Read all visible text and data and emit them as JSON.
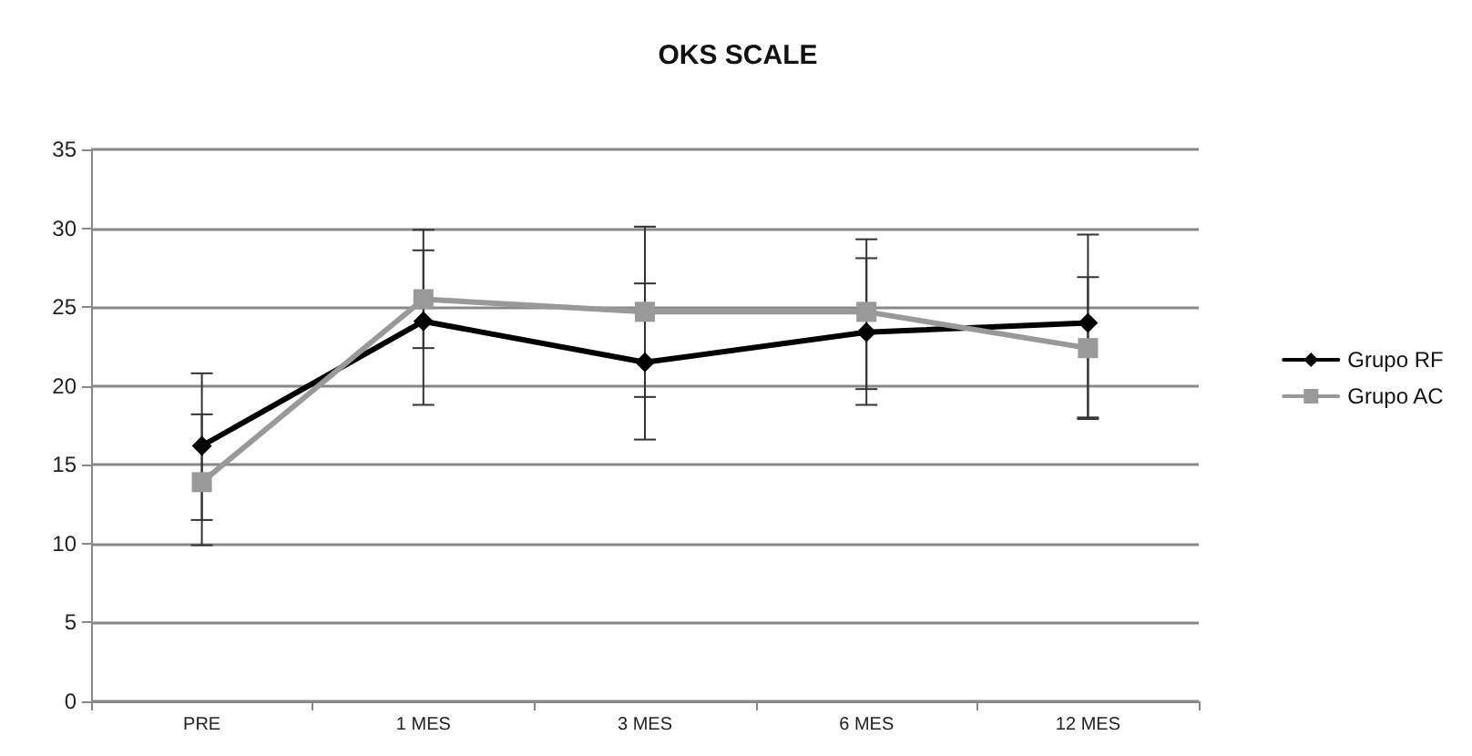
{
  "chart_data": {
    "type": "line",
    "title": "OKS SCALE",
    "categories": [
      "PRE",
      "1 MES",
      "3 MES",
      "6 MES",
      "12 MES"
    ],
    "series": [
      {
        "name": "Grupo RF",
        "color": "#000000",
        "marker": "diamond",
        "values": [
          16.2,
          24.1,
          21.5,
          23.4,
          24.0
        ],
        "errors": [
          [
            11.5,
            20.8
          ],
          [
            18.8,
            29.9
          ],
          [
            16.6,
            26.5
          ],
          [
            18.8,
            28.1
          ],
          [
            18.0,
            29.6
          ]
        ]
      },
      {
        "name": "Grupo AC",
        "color": "#999999",
        "marker": "square",
        "values": [
          13.9,
          25.5,
          24.7,
          24.7,
          22.4
        ],
        "errors": [
          [
            9.9,
            18.2
          ],
          [
            22.4,
            28.6
          ],
          [
            19.3,
            30.1
          ],
          [
            19.8,
            29.3
          ],
          [
            17.9,
            26.9
          ]
        ]
      }
    ],
    "ylim": [
      0,
      35
    ],
    "yticks": [
      0,
      5,
      10,
      15,
      20,
      25,
      30,
      35
    ],
    "grid": "y",
    "legend": "right",
    "line_style": "solid"
  }
}
